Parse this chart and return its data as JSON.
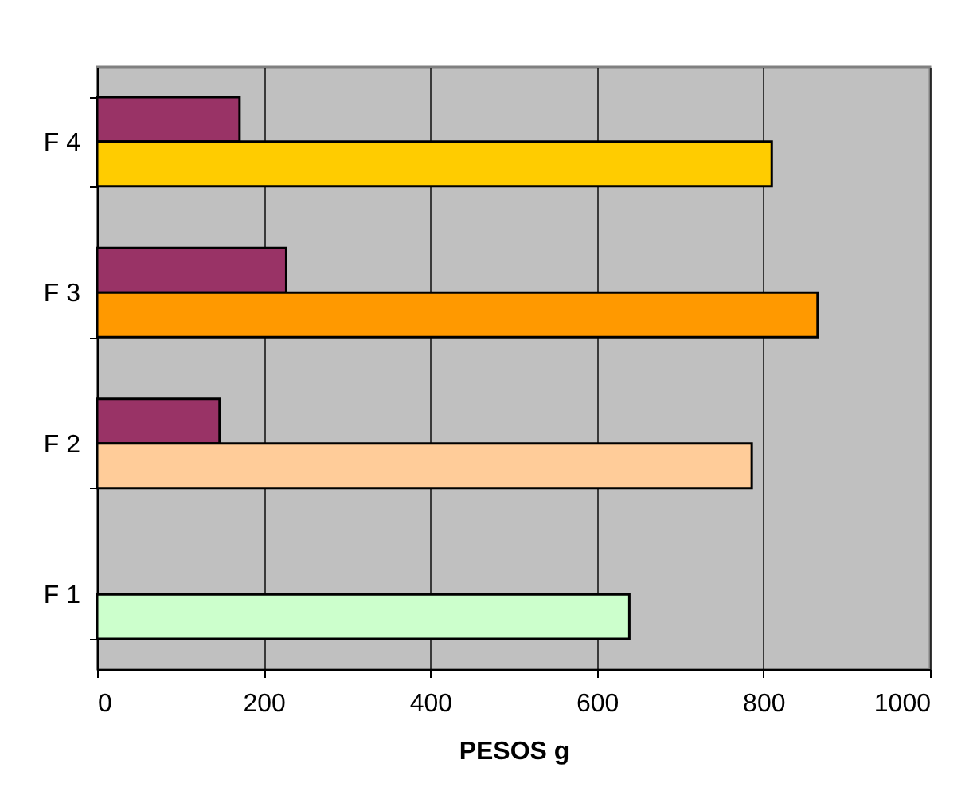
{
  "chart_data": {
    "type": "bar",
    "orientation": "horizontal",
    "xlabel": "PESOS   g",
    "categories": [
      "F 4",
      "F 3",
      "F 2",
      "F 1"
    ],
    "series": [
      {
        "color": "#993366",
        "values": [
          171,
          227,
          147,
          null
        ]
      },
      {
        "colors": [
          "#ffcc00",
          "#ff9900",
          "#ffcc99",
          "#ccffcc"
        ],
        "values": [
          810,
          865,
          786,
          639
        ]
      }
    ],
    "xlim": [
      0,
      1000
    ],
    "xticks": [
      0,
      200,
      400,
      600,
      800,
      1000
    ],
    "grid": "x"
  }
}
